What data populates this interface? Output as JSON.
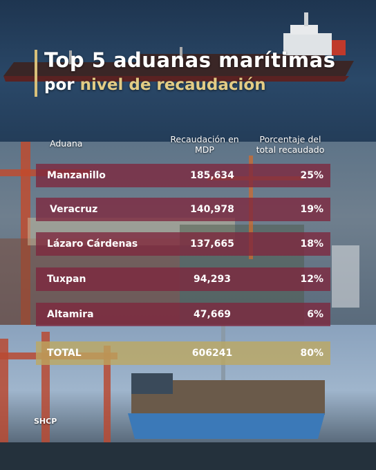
{
  "title": {
    "line1": "Top 5 aduanas marítimas",
    "line2_white": "por ",
    "line2_gold": "nivel de recaudación"
  },
  "headers": {
    "aduana": "Aduana",
    "recaudacion": "Recaudación en MDP",
    "porcentaje": "Porcentaje del total recaudado"
  },
  "rows": [
    {
      "aduana": "Manzanillo",
      "recaudacion": "185,634",
      "porcentaje": "25%"
    },
    {
      "aduana": "Veracruz",
      "recaudacion": "140,978",
      "porcentaje": "19%"
    },
    {
      "aduana": "Lázaro Cárdenas",
      "recaudacion": "137,665",
      "porcentaje": "18%"
    },
    {
      "aduana": "Tuxpan",
      "recaudacion": "94,293",
      "porcentaje": "12%"
    },
    {
      "aduana": "Altamira",
      "recaudacion": "47,669",
      "porcentaje": "6%"
    }
  ],
  "total": {
    "aduana": "TOTAL",
    "recaudacion": "606241",
    "porcentaje": "80%"
  },
  "source": "SHCP",
  "colors": {
    "row": "#7d263e",
    "total": "#bea85f",
    "accent": "#e3cc85"
  },
  "chart_data": {
    "type": "table",
    "columns": [
      "Aduana",
      "Recaudación en MDP",
      "Porcentaje del total recaudado"
    ],
    "categories": [
      "Manzanillo",
      "Veracruz",
      "Lázaro Cárdenas",
      "Tuxpan",
      "Altamira"
    ],
    "series": [
      {
        "name": "Recaudación en MDP",
        "values": [
          185634,
          140978,
          137665,
          94293,
          47669
        ]
      },
      {
        "name": "Porcentaje del total recaudado",
        "values": [
          25,
          19,
          18,
          12,
          6
        ]
      }
    ],
    "total": {
      "recaudacion": 606241,
      "porcentaje": 80
    }
  }
}
